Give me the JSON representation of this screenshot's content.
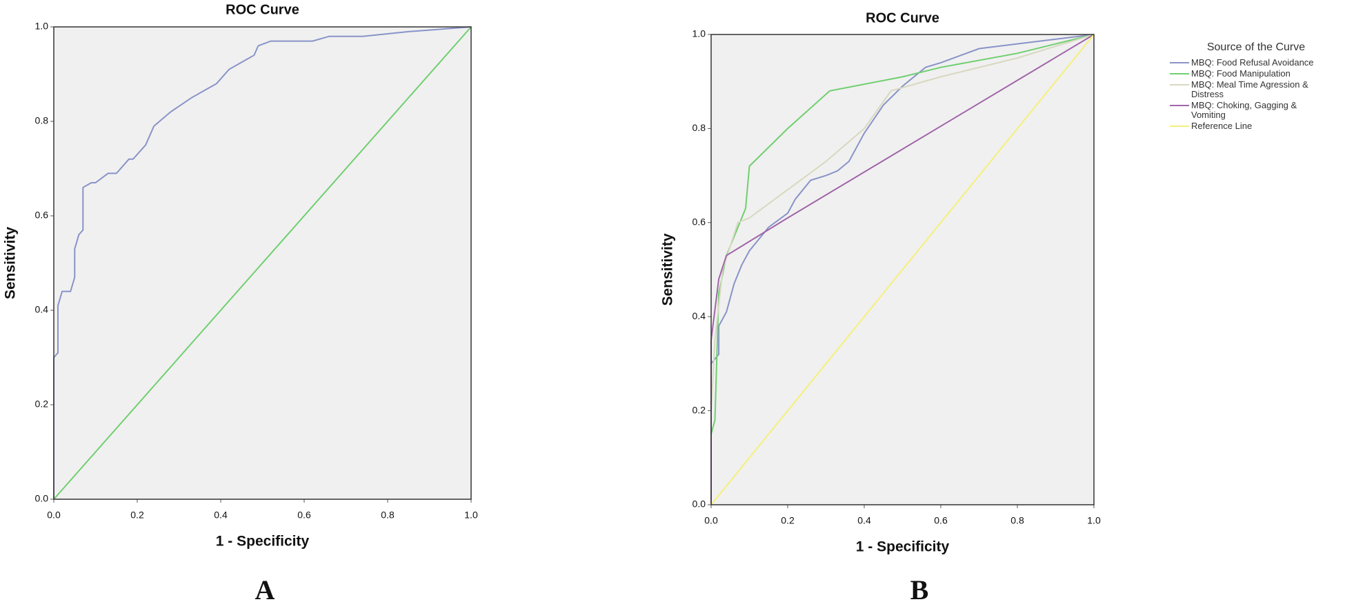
{
  "chart_data": [
    {
      "type": "line",
      "title": "ROC Curve",
      "xlabel": "1 - Specificity",
      "ylabel": "Sensitivity",
      "panel": "A",
      "xlim": [
        0,
        1
      ],
      "ylim": [
        0,
        1
      ],
      "xticks": [
        {
          "value": 0,
          "label": "0.0"
        },
        {
          "value": 0.2,
          "label": "0.2"
        },
        {
          "value": 0.4,
          "label": "0.4"
        },
        {
          "value": 0.6,
          "label": "0.6"
        },
        {
          "value": 0.8,
          "label": "0.8"
        },
        {
          "value": 1,
          "label": "1.0"
        }
      ],
      "yticks": [
        {
          "value": 0,
          "label": "0.0"
        },
        {
          "value": 0.2,
          "label": "0.2"
        },
        {
          "value": 0.4,
          "label": "0.4"
        },
        {
          "value": 0.6,
          "label": "0.6"
        },
        {
          "value": 0.8,
          "label": "0.8"
        },
        {
          "value": 1,
          "label": "1.0"
        }
      ],
      "series": [
        {
          "color": "#8893c8",
          "x": [
            0,
            0,
            0.01,
            0.01,
            0.02,
            0.04,
            0.05,
            0.05,
            0.06,
            0.07,
            0.07,
            0.09,
            0.1,
            0.13,
            0.15,
            0.17,
            0.18,
            0.19,
            0.22,
            0.24,
            0.28,
            0.33,
            0.39,
            0.42,
            0.46,
            0.48,
            0.49,
            0.52,
            0.62,
            0.66,
            0.74,
            0.85,
            1
          ],
          "values": [
            0,
            0.3,
            0.31,
            0.41,
            0.44,
            0.44,
            0.47,
            0.53,
            0.56,
            0.57,
            0.66,
            0.67,
            0.67,
            0.69,
            0.69,
            0.71,
            0.72,
            0.72,
            0.75,
            0.79,
            0.82,
            0.85,
            0.88,
            0.91,
            0.93,
            0.94,
            0.96,
            0.97,
            0.97,
            0.98,
            0.98,
            0.99,
            1
          ]
        },
        {
          "color": "#6fcf6f",
          "x": [
            0,
            1
          ],
          "values": [
            0,
            1
          ]
        }
      ]
    },
    {
      "type": "line",
      "title": "ROC Curve",
      "xlabel": "1 - Specificity",
      "ylabel": "Sensitivity",
      "panel": "B",
      "legend": "right",
      "legend_title": "Source of the Curve",
      "xlim": [
        0,
        1
      ],
      "ylim": [
        0,
        1
      ],
      "xticks": [
        {
          "value": 0,
          "label": "0.0"
        },
        {
          "value": 0.2,
          "label": "0.2"
        },
        {
          "value": 0.4,
          "label": "0.4"
        },
        {
          "value": 0.6,
          "label": "0.6"
        },
        {
          "value": 0.8,
          "label": "0.8"
        },
        {
          "value": 1,
          "label": "1.0"
        }
      ],
      "yticks": [
        {
          "value": 0,
          "label": "0.0"
        },
        {
          "value": 0.2,
          "label": "0.2"
        },
        {
          "value": 0.4,
          "label": "0.4"
        },
        {
          "value": 0.6,
          "label": "0.6"
        },
        {
          "value": 0.8,
          "label": "0.8"
        },
        {
          "value": 1,
          "label": "1.0"
        }
      ],
      "series": [
        {
          "name": "MBQ: Food Refusal Avoidance",
          "color": "#8893c8",
          "x": [
            0,
            0,
            0.02,
            0.02,
            0.04,
            0.06,
            0.08,
            0.1,
            0.15,
            0.2,
            0.22,
            0.26,
            0.3,
            0.33,
            0.36,
            0.4,
            0.45,
            0.5,
            0.56,
            0.6,
            0.7,
            0.8,
            1
          ],
          "values": [
            0,
            0.3,
            0.32,
            0.38,
            0.41,
            0.47,
            0.51,
            0.54,
            0.59,
            0.62,
            0.65,
            0.69,
            0.7,
            0.71,
            0.73,
            0.79,
            0.85,
            0.89,
            0.93,
            0.94,
            0.97,
            0.98,
            1
          ]
        },
        {
          "name": "MBQ: Food Manipulation",
          "color": "#6fcf6f",
          "x": [
            0,
            0,
            0.01,
            0.02,
            0.04,
            0.06,
            0.09,
            0.1,
            0.2,
            0.31,
            0.5,
            0.6,
            0.8,
            1
          ],
          "values": [
            0,
            0.15,
            0.18,
            0.45,
            0.53,
            0.57,
            0.63,
            0.72,
            0.8,
            0.88,
            0.91,
            0.93,
            0.96,
            1
          ]
        },
        {
          "name": "MBQ: Meal Time Agression & Distress",
          "color": "#d8d8c0",
          "x": [
            0,
            0,
            0.01,
            0.03,
            0.07,
            0.1,
            0.2,
            0.3,
            0.4,
            0.47,
            0.6,
            0.8,
            1
          ],
          "values": [
            0,
            0.2,
            0.35,
            0.5,
            0.6,
            0.61,
            0.67,
            0.73,
            0.8,
            0.88,
            0.91,
            0.95,
            1
          ]
        },
        {
          "name": "MBQ: Choking, Gagging & Vomiting",
          "color": "#a065a8",
          "x": [
            0,
            0,
            0.02,
            0.04,
            0.1,
            0.2,
            1
          ],
          "values": [
            0,
            0.35,
            0.48,
            0.53,
            0.56,
            0.61,
            1
          ]
        },
        {
          "name": "Reference Line",
          "color": "#f5f07a",
          "x": [
            0,
            1
          ],
          "values": [
            0,
            1
          ]
        }
      ]
    }
  ]
}
